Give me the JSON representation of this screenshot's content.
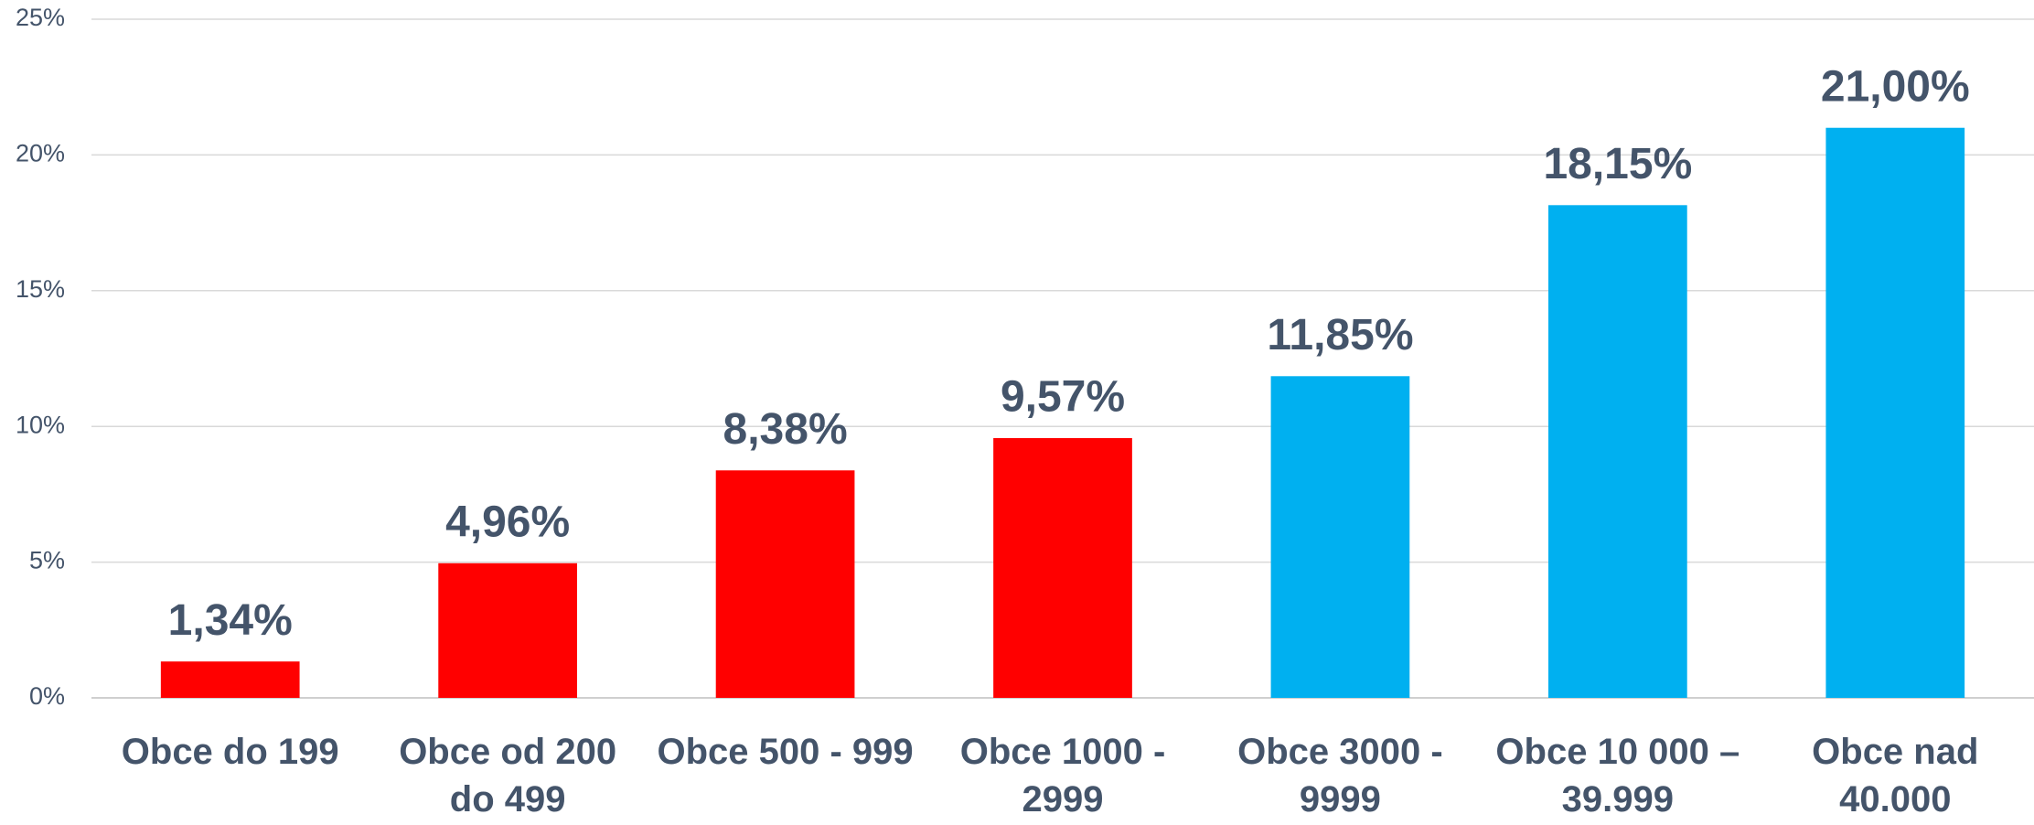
{
  "chart_data": {
    "type": "bar",
    "categories": [
      "Obce do 199",
      "Obce od 200 do 499",
      "Obce 500 - 999",
      "Obce 1000 - 2999",
      "Obce 3000 - 9999",
      "Obce 10 000 – 39.999",
      "Obce nad 40.000"
    ],
    "values": [
      1.34,
      4.96,
      8.38,
      9.57,
      11.85,
      18.15,
      21.0
    ],
    "value_labels": [
      "1,34%",
      "4,96%",
      "8,38%",
      "9,57%",
      "11,85%",
      "18,15%",
      "21,00%"
    ],
    "colors": [
      "#ff0000",
      "#ff0000",
      "#ff0000",
      "#ff0000",
      "#00b0f0",
      "#00b0f0",
      "#00b0f0"
    ],
    "ylim": [
      0,
      25
    ],
    "yticks": [
      {
        "value": 0,
        "label": "0%"
      },
      {
        "value": 5,
        "label": "5%"
      },
      {
        "value": 10,
        "label": "10%"
      },
      {
        "value": 15,
        "label": "15%"
      },
      {
        "value": 20,
        "label": "20%"
      },
      {
        "value": 25,
        "label": "25%"
      }
    ],
    "grid": true
  }
}
